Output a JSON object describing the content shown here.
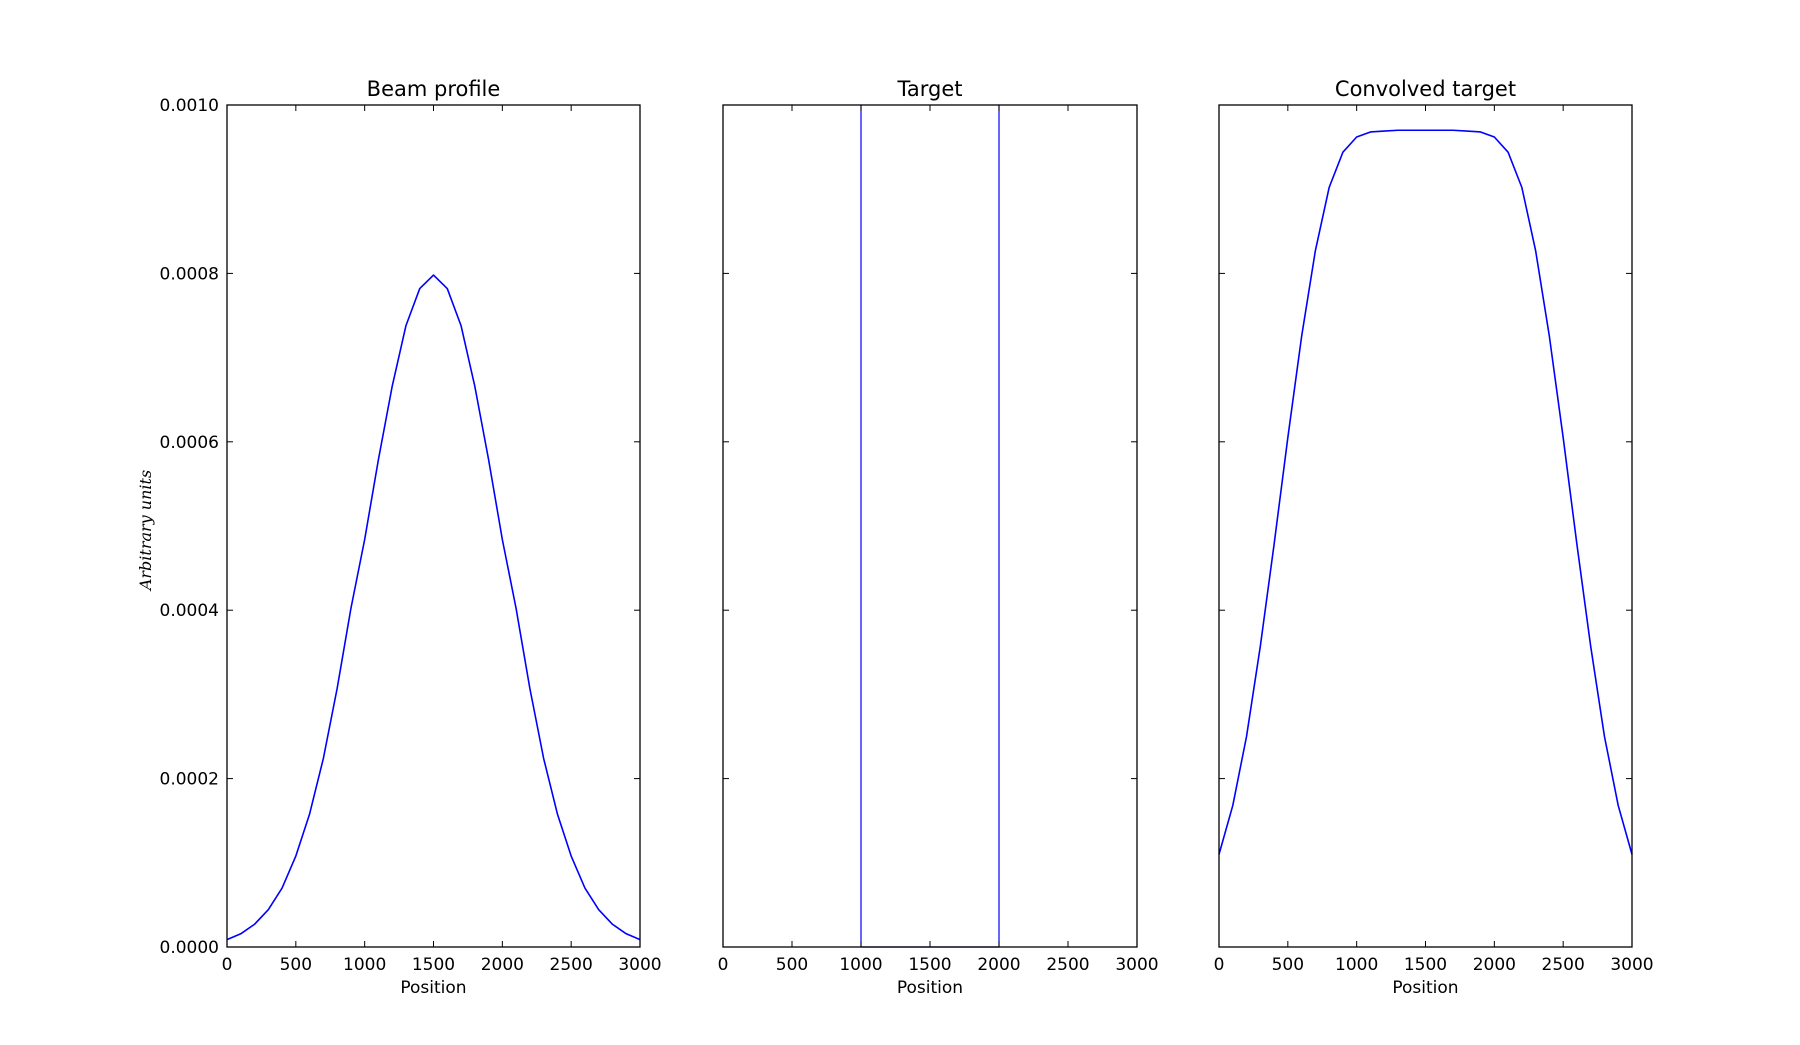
{
  "figure": {
    "ylabel": "Arbitrary units",
    "line_color": "#0000ff"
  },
  "chart_data": [
    {
      "type": "line",
      "title": "Beam profile",
      "xlabel": "Position",
      "ylabel": "Arbitrary units",
      "xlim": [
        0,
        3000
      ],
      "ylim": [
        0,
        0.001
      ],
      "x_ticks": [
        "0",
        "500",
        "1000",
        "1500",
        "2000",
        "2500",
        "3000"
      ],
      "y_ticks": [
        "0.0000",
        "0.0002",
        "0.0004",
        "0.0006",
        "0.0008",
        "0.0010"
      ],
      "series": [
        {
          "x": [
            0,
            100,
            200,
            300,
            400,
            500,
            600,
            700,
            800,
            900,
            1000,
            1100,
            1200,
            1300,
            1400,
            1500,
            1600,
            1700,
            1800,
            1900,
            2000,
            2100,
            2200,
            2300,
            2400,
            2500,
            2600,
            2700,
            2800,
            2900,
            3000
          ],
          "y": [
            8.8e-06,
            1.57e-05,
            2.7e-05,
            4.43e-05,
            7e-05,
            0.000108,
            0.000158,
            0.000224,
            0.000307,
            0.000402,
            0.000484,
            0.000579,
            0.000666,
            0.000738,
            0.000782,
            0.000798,
            0.000782,
            0.000738,
            0.000666,
            0.000579,
            0.000484,
            0.000402,
            0.000307,
            0.000224,
            0.000158,
            0.000108,
            7e-05,
            4.43e-05,
            2.7e-05,
            1.57e-05,
            8.8e-06
          ]
        }
      ]
    },
    {
      "type": "line",
      "title": "Target",
      "xlabel": "Position",
      "xlim": [
        0,
        3000
      ],
      "ylim": [
        0,
        0.001
      ],
      "x_ticks": [
        "0",
        "500",
        "1000",
        "1500",
        "2000",
        "2500",
        "3000"
      ],
      "series": [
        {
          "x": [
            1000,
            1000,
            1000,
            2000,
            2000,
            2000
          ],
          "y": [
            0,
            0.001,
            0,
            0,
            0.001,
            0
          ]
        }
      ]
    },
    {
      "type": "line",
      "title": "Convolved target",
      "xlabel": "Position",
      "xlim": [
        0,
        3000
      ],
      "ylim": [
        0,
        0.001
      ],
      "x_ticks": [
        "0",
        "500",
        "1000",
        "1500",
        "2000",
        "2500",
        "3000"
      ],
      "series": [
        {
          "x": [
            0,
            100,
            200,
            300,
            400,
            500,
            600,
            700,
            800,
            900,
            1000,
            1100,
            1200,
            1300,
            1400,
            1500,
            1600,
            1700,
            1800,
            1900,
            2000,
            2100,
            2200,
            2300,
            2400,
            2500,
            2600,
            2700,
            2800,
            2900,
            3000
          ],
          "y": [
            0.00011,
            0.000168,
            0.00025,
            0.000357,
            0.000478,
            0.000605,
            0.000725,
            0.000827,
            0.000902,
            0.000944,
            0.000962,
            0.000968,
            0.000969,
            0.00097,
            0.00097,
            0.00097,
            0.00097,
            0.00097,
            0.000969,
            0.000968,
            0.000962,
            0.000944,
            0.000902,
            0.000827,
            0.000725,
            0.000605,
            0.000478,
            0.000357,
            0.00025,
            0.000168,
            0.00011
          ]
        }
      ]
    }
  ]
}
